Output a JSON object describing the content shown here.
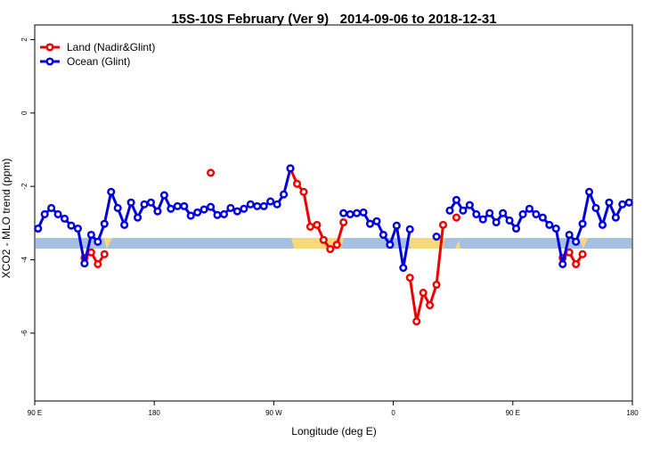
{
  "chart_data": {
    "type": "line",
    "title": "15S-10S February (Ver 9)   2014-09-06 to 2018-12-31",
    "xlabel": "Longitude (deg E)",
    "ylabel": "XCO2 - MLO trend (ppm)",
    "xlim": [
      90,
      540
    ],
    "ylim": [
      -7.85,
      2.4
    ],
    "xticks": [
      {
        "value": 90,
        "label": "90 E"
      },
      180,
      {
        "value": 270,
        "label": "90 W"
      },
      {
        "value": 360,
        "label": "0"
      },
      {
        "value": 450,
        "label": "90 E"
      },
      {
        "value": 540,
        "label": "180"
      }
    ],
    "yticks": [
      2,
      0,
      -2,
      -4,
      -6
    ],
    "grid": false,
    "legend": "top-left",
    "x": [
      92.5,
      97.5,
      102.5,
      107.5,
      112.5,
      117.5,
      122.5,
      127.5,
      132.5,
      137.5,
      142.5,
      147.5,
      152.5,
      157.5,
      162.5,
      167.5,
      172.5,
      177.5,
      182.5,
      187.5,
      192.5,
      197.5,
      202.5,
      207.5,
      212.5,
      217.5,
      222.5,
      227.5,
      232.5,
      237.5,
      242.5,
      247.5,
      252.5,
      257.5,
      262.5,
      267.5,
      272.5,
      277.5,
      282.5,
      287.5,
      292.5,
      297.5,
      302.5,
      307.5,
      312.5,
      317.5,
      322.5,
      327.5,
      332.5,
      337.5,
      342.5,
      347.5,
      352.5,
      357.5,
      362.5,
      367.5,
      372.5,
      377.5,
      382.5,
      387.5,
      392.5,
      397.5,
      402.5,
      407.5,
      412.5,
      417.5,
      422.5,
      427.5,
      432.5,
      437.5,
      442.5,
      447.5,
      452.5,
      457.5,
      462.5,
      467.5,
      472.5,
      477.5,
      482.5,
      487.5,
      492.5,
      497.5,
      502.5,
      507.5,
      512.5,
      517.5,
      522.5,
      527.5,
      532.5,
      537.5
    ],
    "series": [
      {
        "name": "Land (Nadir&Glint)",
        "color": "#ee0000",
        "values": [
          null,
          null,
          null,
          null,
          null,
          null,
          null,
          -3.95,
          -3.8,
          -4.12,
          -3.85,
          null,
          null,
          null,
          null,
          null,
          null,
          null,
          null,
          null,
          null,
          null,
          null,
          null,
          null,
          null,
          -1.63,
          null,
          null,
          null,
          null,
          null,
          null,
          null,
          null,
          null,
          null,
          null,
          -1.51,
          -1.93,
          -2.15,
          -3.1,
          -3.05,
          -3.46,
          -3.71,
          -3.59,
          -2.98,
          null,
          null,
          null,
          null,
          null,
          null,
          null,
          null,
          null,
          -4.49,
          -5.68,
          -4.9,
          -5.24,
          -4.68,
          -3.05,
          null,
          -2.85,
          null,
          null,
          null,
          null,
          null,
          null,
          null,
          null,
          null,
          null,
          null,
          null,
          null,
          null,
          null,
          -3.95,
          -3.8,
          -4.12,
          -3.85,
          null,
          null,
          null,
          null,
          null,
          null,
          null
        ]
      },
      {
        "name": "Ocean (Glint)",
        "color": "#0000dd",
        "values": [
          -3.15,
          -2.76,
          -2.59,
          -2.76,
          -2.88,
          -3.07,
          -3.15,
          -4.1,
          -3.32,
          -3.51,
          -3.02,
          -2.15,
          -2.59,
          -3.05,
          -2.44,
          -2.85,
          -2.49,
          -2.44,
          -2.68,
          -2.24,
          -2.61,
          -2.54,
          -2.54,
          -2.8,
          -2.71,
          -2.63,
          -2.56,
          -2.78,
          -2.76,
          -2.59,
          -2.68,
          -2.61,
          -2.49,
          -2.54,
          -2.54,
          -2.41,
          -2.49,
          -2.22,
          -1.51,
          null,
          null,
          null,
          null,
          null,
          null,
          null,
          -2.73,
          -2.76,
          -2.73,
          -2.71,
          -3.02,
          -2.95,
          -3.32,
          -3.59,
          -3.07,
          -4.22,
          -3.17,
          null,
          null,
          null,
          -3.37,
          null,
          -2.66,
          -2.37,
          -2.66,
          -2.51,
          -2.76,
          -2.9,
          -2.73,
          -2.98,
          -2.73,
          -2.93,
          -3.15,
          -2.76,
          -2.61,
          -2.76,
          -2.85,
          -3.05,
          -3.15,
          -4.12,
          -3.32,
          -3.51,
          -3.02,
          -2.15,
          -2.59,
          -3.05,
          -2.44,
          -2.85,
          -2.49,
          -2.44
        ]
      }
    ]
  }
}
